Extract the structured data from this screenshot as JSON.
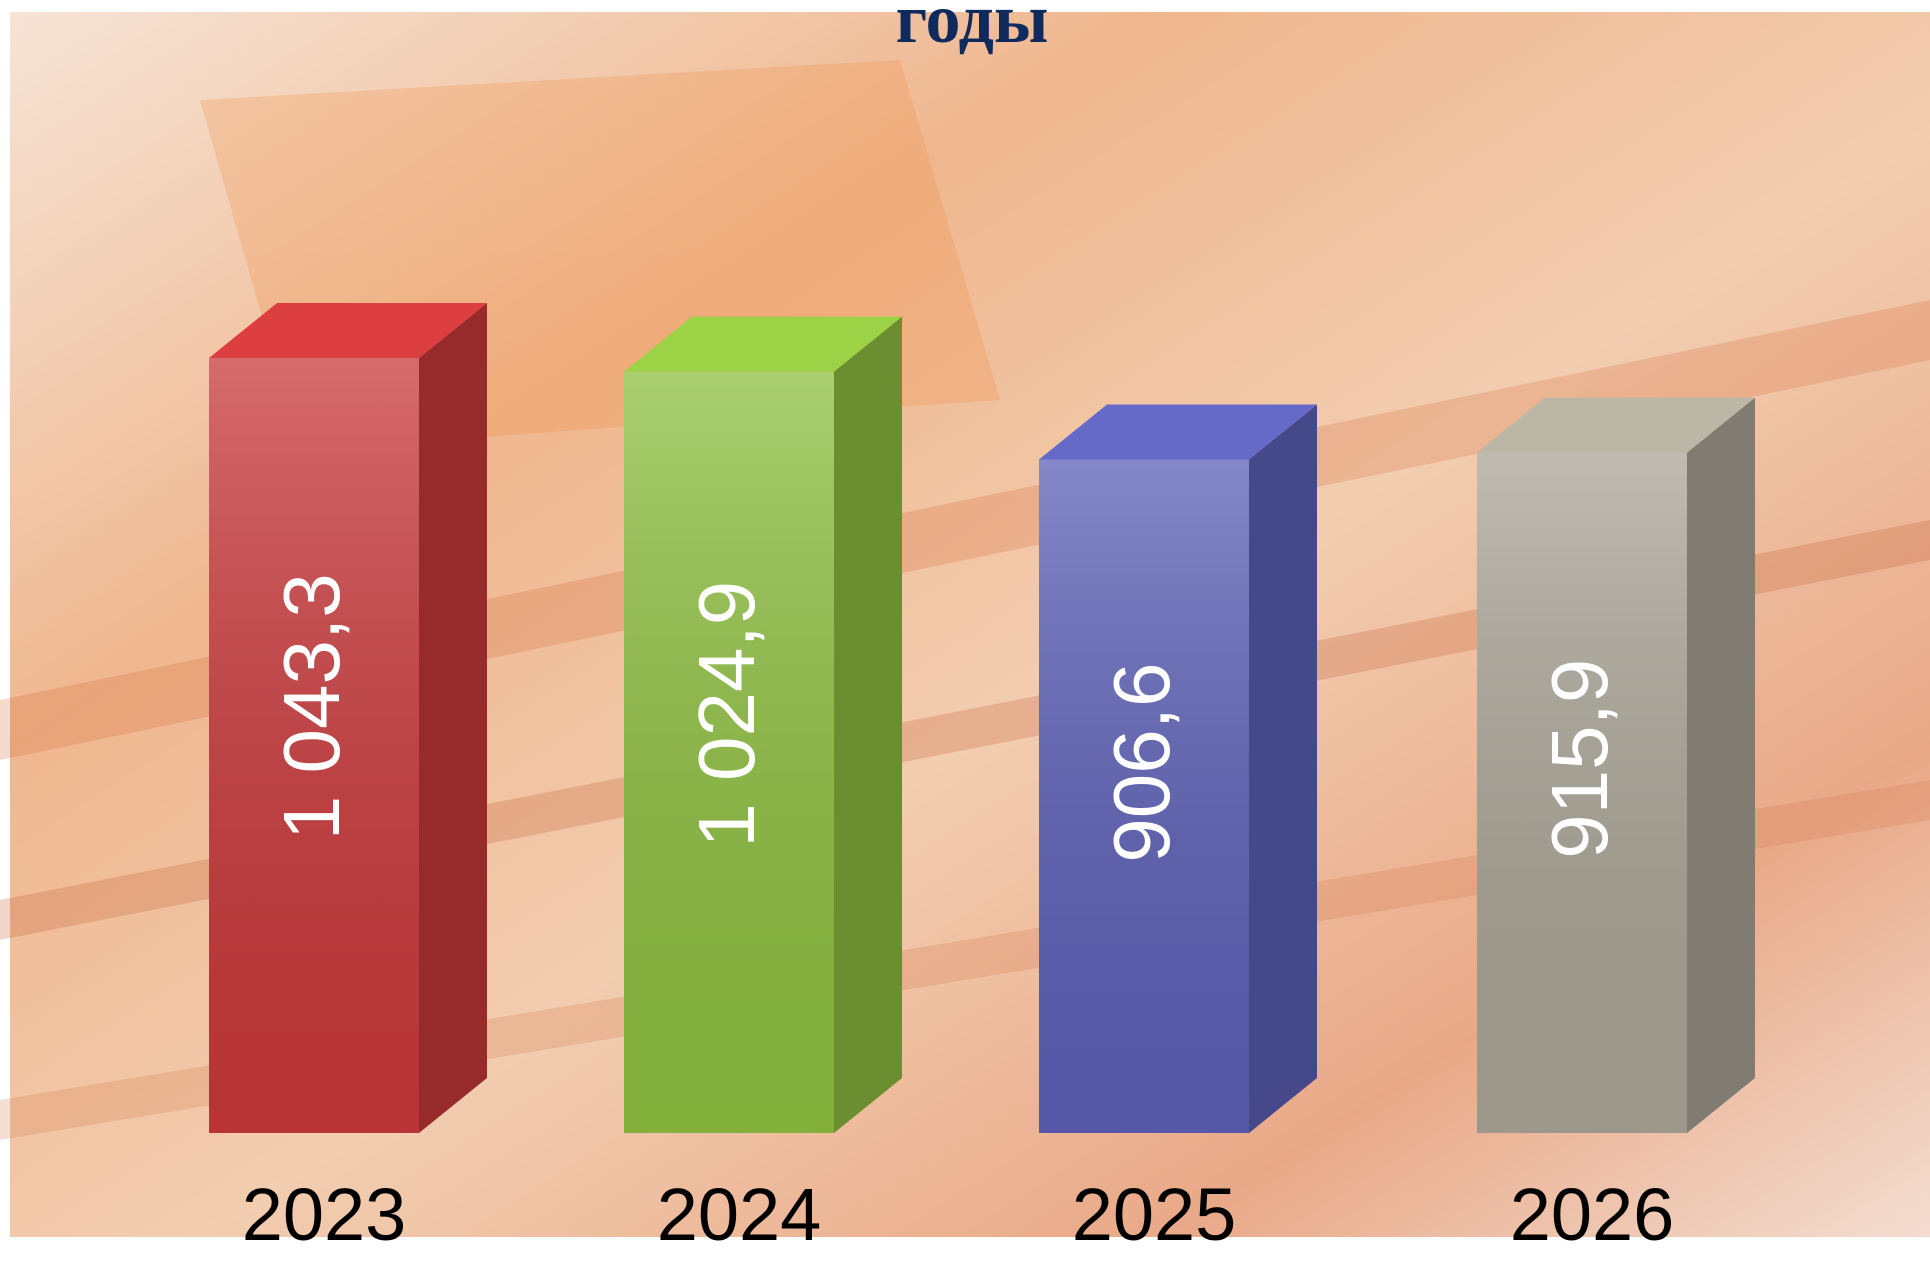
{
  "chart_data": {
    "type": "bar3d",
    "title": "годы",
    "categories": [
      "2023",
      "2024",
      "2025",
      "2026"
    ],
    "values": [
      1043.3,
      1024.9,
      906.6,
      915.9
    ],
    "value_labels": [
      "1 043,3",
      "1 024,9",
      "906,6",
      "915,9"
    ],
    "colors": [
      "#c9393b",
      "#8ebf40",
      "#5c60b6",
      "#aaa597"
    ]
  }
}
